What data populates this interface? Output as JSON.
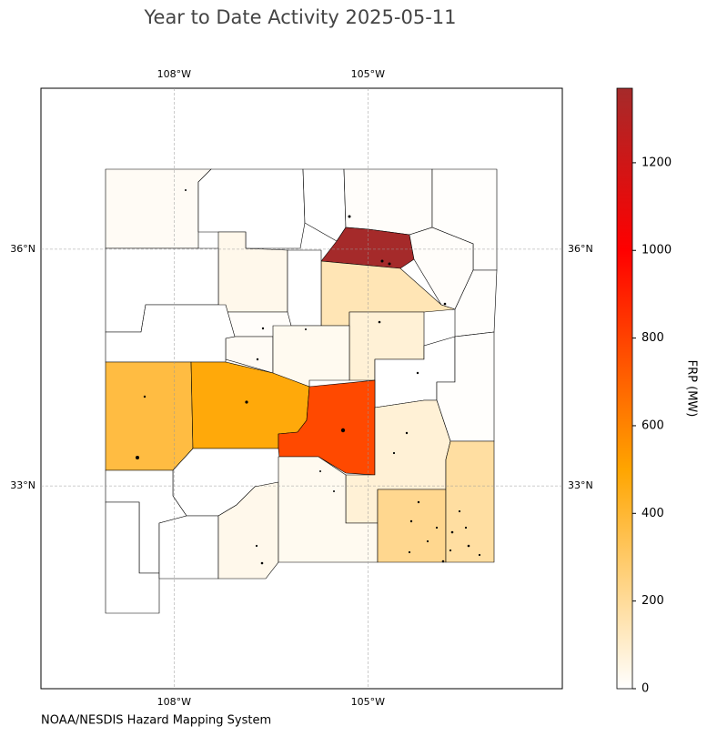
{
  "title": "Year to Date Activity 2025-05-11",
  "source": "NOAA/NESDIS Hazard Mapping System",
  "map": {
    "lon_lim": [
      -110.06,
      -101.99
    ],
    "lat_lim": [
      30.43,
      38.04
    ],
    "lon_ticks": [
      {
        "value": -108,
        "label": "108°W"
      },
      {
        "value": -105,
        "label": "105°W"
      }
    ],
    "lat_ticks": [
      {
        "value": 36,
        "label": "36°N"
      },
      {
        "value": 33,
        "label": "33°N"
      }
    ],
    "grid": true,
    "county_frp": [
      20,
      0,
      0,
      10,
      5,
      1370,
      10,
      5,
      145,
      80,
      0,
      5,
      40,
      0,
      0,
      10,
      20,
      30,
      0,
      370,
      480,
      780,
      80,
      0,
      0,
      0,
      0,
      40,
      30,
      220,
      185
    ]
  },
  "colorbar": {
    "label": "FRP (MW)",
    "lim": [
      0,
      1370
    ],
    "ticks": [
      0,
      200,
      400,
      600,
      800,
      1000,
      1200
    ],
    "colormap": [
      {
        "value": 0,
        "color": "#ffffff"
      },
      {
        "value": 500,
        "color": "#ffa500"
      },
      {
        "value": 1000,
        "color": "#ff0000"
      },
      {
        "value": 1370,
        "color": "#a52a2a"
      }
    ]
  }
}
